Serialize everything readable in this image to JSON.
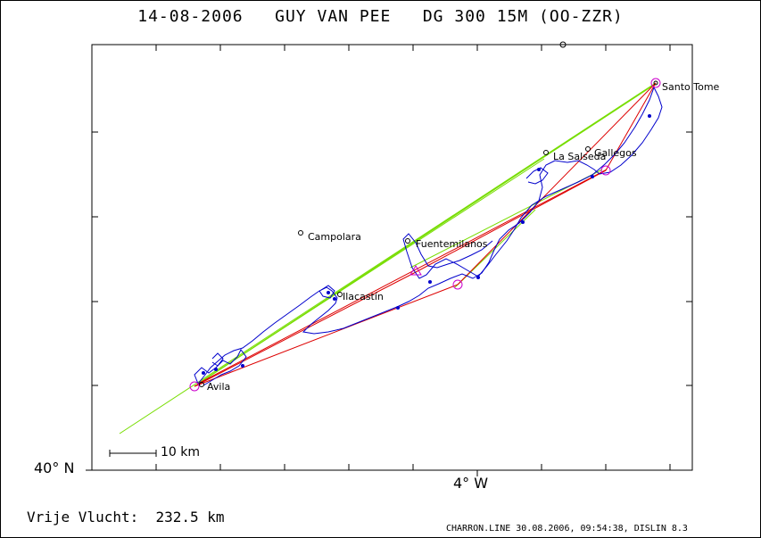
{
  "title": "14-08-2006   GUY VAN PEE   DG 300 15M (OO-ZZR)",
  "axes": {
    "lat_label": "40° N",
    "lon_label": "4° W"
  },
  "scale": {
    "label": "10 km"
  },
  "distance_text": "Vrije Vlucht:  232.5 km",
  "footer_text": "CHARRON.LINE 30.08.2006, 09:54:38, DISLIN 8.3",
  "places": {
    "santo_tome": "Santo Tome",
    "la_salseda": "La Salseda",
    "gallegos": "Gallegos",
    "campolara": "Campolara",
    "fuentemilanos": "Fuentemilanos",
    "ilacastin": "Ilacastín",
    "avila": "Avila"
  },
  "colors": {
    "track": "#0000cc",
    "task": "#dd0000",
    "free_flight": "#77dd00",
    "turnpoint": "#cc00cc",
    "frame": "#000000"
  }
}
